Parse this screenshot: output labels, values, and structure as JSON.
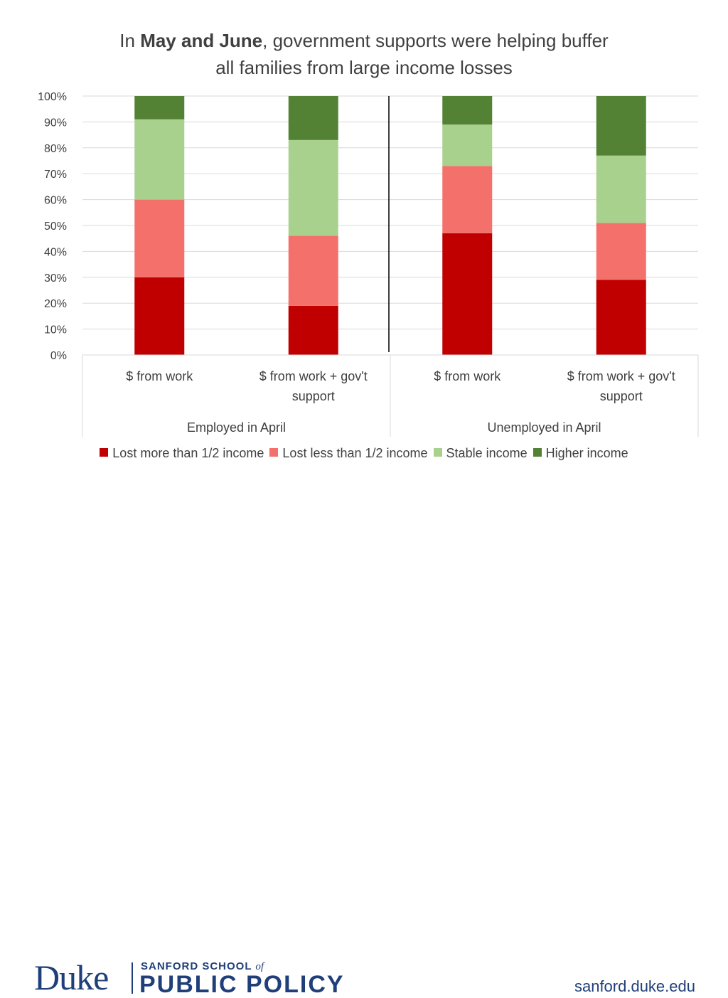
{
  "title": {
    "prefix": "In ",
    "bold": "May and June",
    "rest_line1": ", government supports were helping buffer",
    "line2": "all families from large income losses"
  },
  "chart_data": {
    "type": "bar",
    "stacked": true,
    "percent_axis": true,
    "ylim": [
      0,
      100
    ],
    "y_ticks": [
      "0%",
      "10%",
      "20%",
      "30%",
      "40%",
      "50%",
      "60%",
      "70%",
      "80%",
      "90%",
      "100%"
    ],
    "grid": true,
    "legend_position": "bottom",
    "groups": [
      {
        "label": "Employed in April",
        "categories": [
          "$ from work",
          "$ from work + gov't support"
        ]
      },
      {
        "label": "Unemployed in April",
        "categories": [
          "$ from work",
          "$ from work + gov't support"
        ]
      }
    ],
    "categories": [
      "$ from work",
      "$ from work + gov't support",
      "$ from work",
      "$ from work + gov't support"
    ],
    "series": [
      {
        "name": "Lost more than 1/2 income",
        "color": "#c00000",
        "values": [
          30,
          19,
          47,
          29
        ]
      },
      {
        "name": "Lost less than 1/2 income",
        "color": "#f4716b",
        "values": [
          30,
          27,
          26,
          22
        ]
      },
      {
        "name": "Stable income",
        "color": "#a9d18e",
        "values": [
          31,
          37,
          16,
          26
        ]
      },
      {
        "name": "Higher income",
        "color": "#548235",
        "values": [
          9,
          17,
          11,
          23
        ]
      }
    ]
  },
  "footer": {
    "brand": "Duke",
    "school_line1": "SANFORD SCHOOL",
    "school_of": "of",
    "school_line2": "PUBLIC POLICY",
    "url": "sanford.duke.edu"
  }
}
